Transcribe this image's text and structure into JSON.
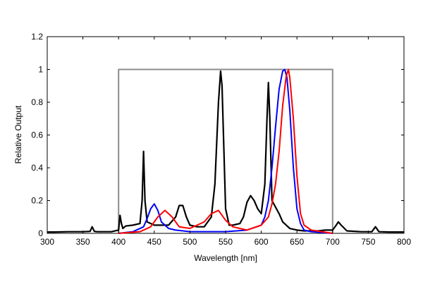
{
  "chart_data": {
    "type": "line",
    "title": "",
    "xlabel": "Wavelength [nm]",
    "ylabel": "Relative Output",
    "xlim": [
      300,
      800
    ],
    "ylim": [
      0,
      1.2
    ],
    "xticks": [
      300,
      350,
      400,
      450,
      500,
      550,
      600,
      650,
      700,
      750,
      800
    ],
    "xtick_labels": [
      "300",
      "350",
      "400",
      "450",
      "500",
      "550",
      "600",
      "650",
      "700",
      "750",
      "800"
    ],
    "yticks": [
      0,
      0.2,
      0.4,
      0.6,
      0.8,
      1,
      1.2
    ],
    "ytick_labels": [
      "0",
      "0.2",
      "0.4",
      "0.6",
      "0.8",
      "1",
      "1.2"
    ],
    "grid": false,
    "legend": "none",
    "series": [
      {
        "color": "#8c8c8c",
        "x": [
          400,
          400,
          700,
          700
        ],
        "y": [
          0,
          1,
          1,
          0
        ]
      },
      {
        "color": "#000000",
        "x": [
          300,
          310,
          330,
          350,
          360,
          363,
          366,
          370,
          390,
          400,
          402,
          404,
          406,
          410,
          420,
          430,
          433,
          435,
          437,
          440,
          445,
          450,
          460,
          470,
          480,
          485,
          490,
          495,
          500,
          510,
          520,
          530,
          535,
          540,
          543,
          545,
          547,
          550,
          555,
          560,
          570,
          575,
          580,
          585,
          590,
          595,
          600,
          605,
          608,
          610,
          612,
          615,
          620,
          625,
          630,
          640,
          650,
          660,
          670,
          680,
          690,
          700,
          705,
          708,
          712,
          720,
          740,
          755,
          760,
          765,
          780,
          800
        ],
        "y": [
          0.008,
          0.008,
          0.01,
          0.01,
          0.012,
          0.04,
          0.012,
          0.01,
          0.01,
          0.02,
          0.11,
          0.06,
          0.03,
          0.045,
          0.05,
          0.06,
          0.2,
          0.5,
          0.2,
          0.07,
          0.06,
          0.05,
          0.05,
          0.05,
          0.1,
          0.17,
          0.17,
          0.1,
          0.05,
          0.04,
          0.04,
          0.1,
          0.3,
          0.8,
          0.99,
          0.9,
          0.6,
          0.15,
          0.05,
          0.05,
          0.06,
          0.1,
          0.19,
          0.23,
          0.2,
          0.15,
          0.12,
          0.3,
          0.7,
          0.92,
          0.7,
          0.2,
          0.16,
          0.12,
          0.07,
          0.03,
          0.02,
          0.015,
          0.015,
          0.015,
          0.02,
          0.02,
          0.05,
          0.07,
          0.05,
          0.015,
          0.01,
          0.01,
          0.04,
          0.01,
          0.008,
          0.008
        ]
      },
      {
        "color": "#0000ff",
        "x": [
          400,
          420,
          435,
          440,
          445,
          450,
          455,
          460,
          470,
          480,
          500,
          550,
          580,
          600,
          605,
          610,
          615,
          620,
          625,
          630,
          633,
          636,
          640,
          645,
          650,
          655,
          660,
          670,
          700
        ],
        "y": [
          0,
          0.01,
          0.04,
          0.09,
          0.15,
          0.18,
          0.14,
          0.07,
          0.03,
          0.02,
          0.01,
          0.01,
          0.02,
          0.05,
          0.1,
          0.2,
          0.4,
          0.65,
          0.88,
          0.99,
          1,
          0.95,
          0.75,
          0.4,
          0.15,
          0.06,
          0.02,
          0.01,
          0
        ]
      },
      {
        "color": "#ff0000",
        "x": [
          400,
          430,
          445,
          455,
          465,
          475,
          485,
          500,
          520,
          530,
          540,
          550,
          560,
          580,
          600,
          610,
          615,
          620,
          625,
          630,
          635,
          638,
          640,
          645,
          650,
          655,
          660,
          670,
          700
        ],
        "y": [
          0,
          0.01,
          0.04,
          0.1,
          0.14,
          0.1,
          0.04,
          0.03,
          0.07,
          0.12,
          0.14,
          0.08,
          0.04,
          0.02,
          0.05,
          0.1,
          0.18,
          0.3,
          0.5,
          0.78,
          0.96,
          1,
          0.95,
          0.7,
          0.35,
          0.12,
          0.05,
          0.02,
          0
        ]
      }
    ]
  }
}
